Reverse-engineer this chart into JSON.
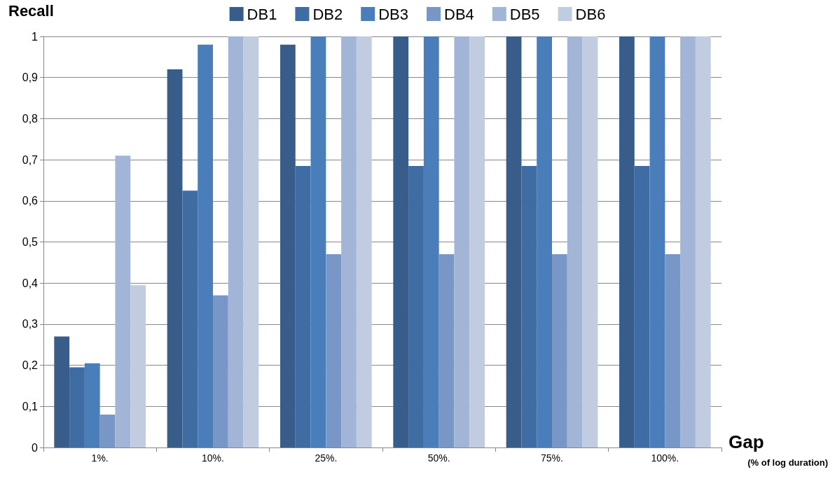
{
  "chart_data": {
    "type": "bar",
    "xlabel": "Gap",
    "ylabel": "Recall",
    "annotations": [
      "(% of log duration)"
    ],
    "categories": [
      "1%.",
      "10%.",
      "25%.",
      "50%.",
      "75%.",
      "100%."
    ],
    "series": [
      {
        "name": "DB1",
        "color": "#385d8a",
        "values": [
          0.27,
          0.92,
          0.98,
          1,
          1,
          1
        ]
      },
      {
        "name": "DB2",
        "color": "#3f6da3",
        "values": [
          0.195,
          0.625,
          0.685,
          0.685,
          0.685,
          0.685
        ]
      },
      {
        "name": "DB3",
        "color": "#4a7ebb",
        "values": [
          0.205,
          0.98,
          1,
          1,
          1,
          1
        ]
      },
      {
        "name": "DB4",
        "color": "#7896c6",
        "values": [
          0.08,
          0.37,
          0.47,
          0.47,
          0.47,
          0.47
        ]
      },
      {
        "name": "DB5",
        "color": "#a2b5d7",
        "values": [
          0.71,
          1,
          1,
          1,
          1,
          1
        ]
      },
      {
        "name": "DB6",
        "color": "#c2cce1",
        "values": [
          0.395,
          1,
          1,
          1,
          1,
          1
        ]
      }
    ],
    "ylim": [
      0,
      1
    ],
    "yticks": [
      0,
      {
        "value": 0.1,
        "label": "0,1"
      },
      {
        "value": 0.2,
        "label": "0,2"
      },
      {
        "value": 0.3,
        "label": "0,3"
      },
      {
        "value": 0.4,
        "label": "0,4"
      },
      {
        "value": 0.5,
        "label": "0,5"
      },
      {
        "value": 0.6,
        "label": "0,6"
      },
      {
        "value": 0.7,
        "label": "0,7"
      },
      {
        "value": 0.8,
        "label": "0,8"
      },
      {
        "value": 0.9,
        "label": "0,9"
      },
      1
    ],
    "grid": "y",
    "legend": "top"
  }
}
